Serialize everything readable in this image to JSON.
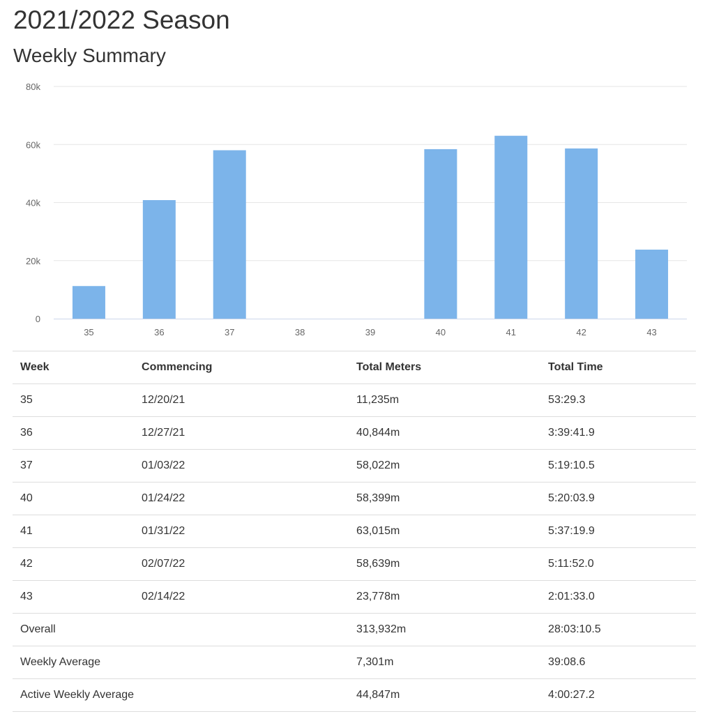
{
  "header": {
    "title": "2021/2022 Season",
    "subtitle": "Weekly Summary"
  },
  "colors": {
    "bar": "#7cb4ea",
    "grid": "#e6e6e6",
    "axis": "#ccd6eb",
    "text": "#333333",
    "tick_label": "#666666",
    "row_border": "#dddddd"
  },
  "chart_data": {
    "type": "bar",
    "title": "",
    "xlabel": "",
    "ylabel": "",
    "categories": [
      "35",
      "36",
      "37",
      "38",
      "39",
      "40",
      "41",
      "42",
      "43"
    ],
    "values": [
      11235,
      40844,
      58022,
      0,
      0,
      58399,
      63015,
      58639,
      23778
    ],
    "ylim": [
      0,
      80000
    ],
    "yticks": [
      0,
      20000,
      40000,
      60000,
      80000
    ],
    "ytick_labels": [
      "0",
      "20k",
      "40k",
      "60k",
      "80k"
    ],
    "grid": true,
    "legend": "none"
  },
  "table": {
    "headers": [
      "Week",
      "Commencing",
      "Total Meters",
      "Total Time"
    ],
    "rows": [
      [
        "35",
        "12/20/21",
        "11,235m",
        "53:29.3"
      ],
      [
        "36",
        "12/27/21",
        "40,844m",
        "3:39:41.9"
      ],
      [
        "37",
        "01/03/22",
        "58,022m",
        "5:19:10.5"
      ],
      [
        "40",
        "01/24/22",
        "58,399m",
        "5:20:03.9"
      ],
      [
        "41",
        "01/31/22",
        "63,015m",
        "5:37:19.9"
      ],
      [
        "42",
        "02/07/22",
        "58,639m",
        "5:11:52.0"
      ],
      [
        "43",
        "02/14/22",
        "23,778m",
        "2:01:33.0"
      ]
    ],
    "summary_rows": [
      [
        "Overall",
        "",
        "313,932m",
        "28:03:10.5"
      ],
      [
        "Weekly Average",
        "",
        "7,301m",
        "39:08.6"
      ],
      [
        "Active Weekly Average",
        "",
        "44,847m",
        "4:00:27.2"
      ]
    ]
  }
}
